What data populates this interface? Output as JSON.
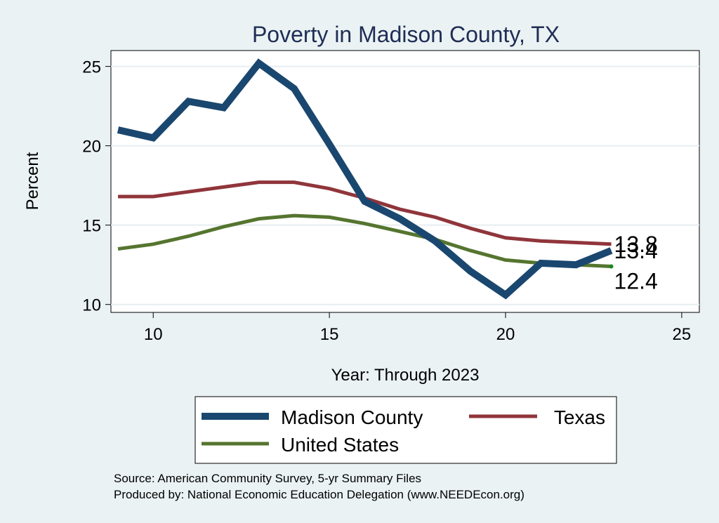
{
  "chart_data": {
    "type": "line",
    "title": "Poverty in Madison County, TX",
    "xlabel": "Year: Through 2023",
    "ylabel": "Percent",
    "xlim": [
      8.8,
      25.5
    ],
    "ylim": [
      9.5,
      26
    ],
    "xticks": [
      10,
      15,
      20,
      25
    ],
    "yticks": [
      10,
      15,
      20,
      25
    ],
    "grid": true,
    "legend_position": "bottom",
    "x": [
      9,
      10,
      11,
      12,
      13,
      14,
      15,
      16,
      17,
      18,
      19,
      20,
      21,
      22,
      23
    ],
    "series": [
      {
        "name": "Madison County",
        "color": "#1a476f",
        "values": [
          21.0,
          20.5,
          22.8,
          22.4,
          25.2,
          23.6,
          20.1,
          16.5,
          15.4,
          14.0,
          12.1,
          10.6,
          12.6,
          12.5,
          13.4
        ],
        "end_label": "13.4"
      },
      {
        "name": "Texas",
        "color": "#90353b",
        "values": [
          16.8,
          16.8,
          17.1,
          17.4,
          17.7,
          17.7,
          17.3,
          16.7,
          16.0,
          15.5,
          14.8,
          14.2,
          14.0,
          13.9,
          13.8
        ],
        "end_label": "13.8"
      },
      {
        "name": "United States",
        "color": "#55752f",
        "values": [
          13.5,
          13.8,
          14.3,
          14.9,
          15.4,
          15.6,
          15.5,
          15.1,
          14.6,
          14.1,
          13.4,
          12.8,
          12.6,
          12.5,
          12.4
        ],
        "end_label": "12.4"
      }
    ],
    "source_note": "Source: American Community Survey, 5-yr Summary Files",
    "producer_note": "Produced by: National Economic Education Delegation (www.NEEDEcon.org)"
  }
}
